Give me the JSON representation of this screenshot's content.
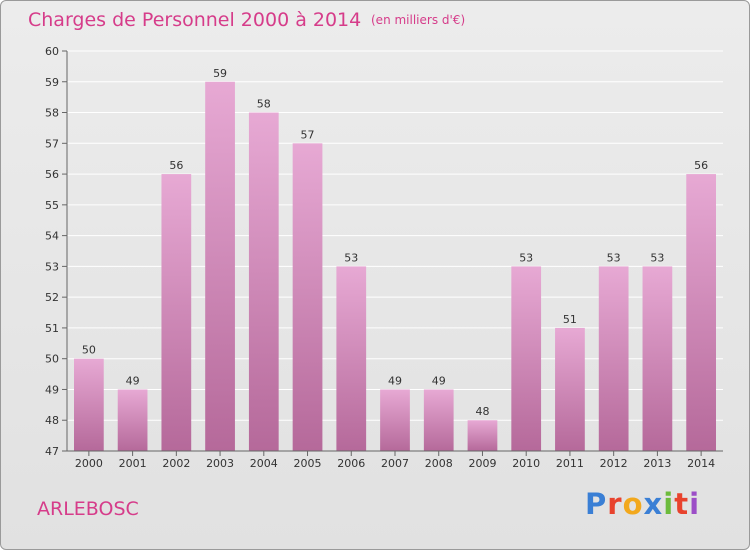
{
  "header": {
    "title": "Charges de Personnel 2000 à 2014",
    "unit": "(en milliers d'€)"
  },
  "footer": {
    "commune": "ARLEBOSC",
    "brand": "Proxiti",
    "brand_letter_colors": [
      "#3a7fd5",
      "#e8432e",
      "#f2a81d",
      "#3a7fd5",
      "#6cbb3c",
      "#e8432e",
      "#9c4ec7"
    ]
  },
  "colors": {
    "accent": "#d63c8a",
    "bar_top": "#e7a9d4",
    "bar_bottom": "#b5699a",
    "grid": "#ffffff",
    "axis_text": "#333333"
  },
  "chart_data": {
    "type": "bar",
    "categories": [
      "2000",
      "2001",
      "2002",
      "2003",
      "2004",
      "2005",
      "2006",
      "2007",
      "2008",
      "2009",
      "2010",
      "2011",
      "2012",
      "2013",
      "2014"
    ],
    "values": [
      50,
      49,
      56,
      59,
      58,
      57,
      53,
      49,
      49,
      48,
      53,
      51,
      53,
      53,
      56
    ],
    "data_labels": [
      "50",
      "49",
      "56",
      "59",
      "58",
      "57",
      "53",
      "49",
      "49",
      "48",
      "53",
      "51",
      "53",
      "53",
      "56"
    ],
    "ylim": [
      47,
      60
    ],
    "yticks": [
      47,
      48,
      49,
      50,
      51,
      52,
      53,
      54,
      55,
      56,
      57,
      58,
      59,
      60
    ],
    "ytick_labels": [
      "47",
      "48",
      "49",
      "50",
      "51",
      "52",
      "53",
      "54",
      "55",
      "56",
      "57",
      "58",
      "59",
      "60"
    ],
    "grid": true,
    "legend": "none"
  }
}
